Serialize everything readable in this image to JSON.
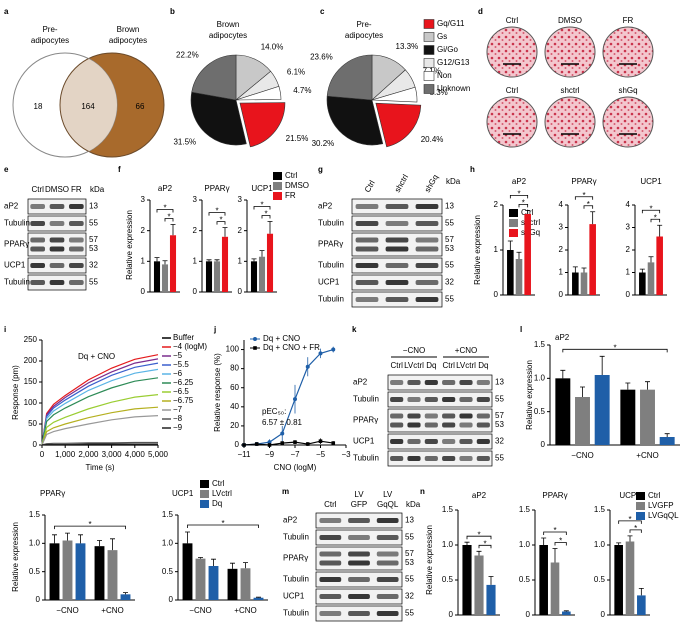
{
  "panel_labels": [
    "a",
    "b",
    "c",
    "d",
    "e",
    "f",
    "g",
    "h",
    "i",
    "j",
    "k",
    "l",
    "m",
    "n"
  ],
  "venn": {
    "sets": [
      [
        "Pre-",
        "adipocytes"
      ],
      [
        "Brown",
        "adipocytes"
      ]
    ],
    "counts": [
      18,
      164,
      66
    ],
    "colors": [
      "#ffffff",
      "#a86a2c",
      "#e3d4c5"
    ]
  },
  "pies": [
    {
      "title": [
        "Brown",
        "adipocytes"
      ],
      "values": [
        14.0,
        6.1,
        4.7,
        21.5,
        31.5,
        22.2
      ],
      "value_labels": [
        "14.0%",
        "6.1%",
        "4.7%",
        "21.5%",
        "31.5%",
        "22.2%"
      ],
      "colors": [
        "#c8c8c8",
        "#e8e8e8",
        "#ffffff",
        "#e8141c",
        "#111111",
        "#6e6e6e"
      ]
    },
    {
      "title": [
        "Pre-",
        "adipocytes"
      ],
      "values": [
        13.3,
        7.1,
        5.3,
        20.4,
        30.2,
        23.6
      ],
      "value_labels": [
        "13.3%",
        "7.1%",
        "5.3%",
        "20.4%",
        "30.2%",
        "23.6%"
      ],
      "colors": [
        "#c8c8c8",
        "#e8e8e8",
        "#ffffff",
        "#e8141c",
        "#111111",
        "#6e6e6e"
      ]
    }
  ],
  "pie_legend": {
    "names": [
      "Gq/G11",
      "Gs",
      "Gi/Go",
      "G12/G13",
      "Non",
      "Unknown"
    ],
    "colors": [
      "#e8141c",
      "#c8c8c8",
      "#111111",
      "#e8e8e8",
      "#ffffff",
      "#6e6e6e"
    ]
  },
  "staining": {
    "rows": [
      [
        "Ctrl",
        "DMSO",
        "FR"
      ],
      [
        "Ctrl",
        "shctrl",
        "shGq"
      ]
    ]
  },
  "blots": {
    "e": {
      "lanes": [
        "Ctrl",
        "DMSO",
        "FR"
      ],
      "unit": "kDa",
      "rows": [
        {
          "label": "aP2",
          "kda": [
            13
          ]
        },
        {
          "label": "Tubulin",
          "kda": [
            55
          ]
        },
        {
          "label": "PPARγ",
          "kda": [
            57,
            53
          ]
        },
        {
          "label": "UCP1",
          "kda": [
            32
          ]
        },
        {
          "label": "Tubulin",
          "kda": [
            55
          ]
        }
      ]
    },
    "g": {
      "lanes": [
        "Ctrl",
        "shctrl",
        "shGq"
      ],
      "unit": "kDa",
      "rows": [
        {
          "label": "aP2",
          "kda": [
            13
          ]
        },
        {
          "label": "Tubulin",
          "kda": [
            55
          ]
        },
        {
          "label": "PPARγ",
          "kda": [
            57,
            53
          ]
        },
        {
          "label": "Tubulin",
          "kda": [
            55
          ]
        },
        {
          "label": "UCP1",
          "kda": [
            32
          ]
        },
        {
          "label": "Tubulin",
          "kda": [
            55
          ]
        }
      ]
    },
    "k": {
      "groups": [
        "−CNO",
        "+CNO"
      ],
      "lanes": [
        "Ctrl",
        "LVctrl",
        "Dq",
        "Ctrl",
        "LVctrl",
        "Dq"
      ],
      "rows": [
        {
          "label": "aP2",
          "kda": [
            13
          ]
        },
        {
          "label": "Tubulin",
          "kda": [
            55
          ]
        },
        {
          "label": "PPARγ",
          "kda": [
            57,
            53
          ]
        },
        {
          "label": "UCP1",
          "kda": [
            32
          ]
        },
        {
          "label": "Tubulin",
          "kda": [
            55
          ]
        }
      ]
    },
    "m": {
      "lanes": [
        "Ctrl",
        [
          "LV",
          "GFP"
        ],
        [
          "LV",
          "GqQL"
        ]
      ],
      "unit": "kDa",
      "rows": [
        {
          "label": "aP2",
          "kda": [
            13
          ]
        },
        {
          "label": "Tubulin",
          "kda": [
            55
          ]
        },
        {
          "label": "PPARγ",
          "kda": [
            57,
            53
          ]
        },
        {
          "label": "Tubulin",
          "kda": [
            55
          ]
        },
        {
          "label": "UCP1",
          "kda": [
            32
          ]
        },
        {
          "label": "Tubulin",
          "kda": [
            55
          ]
        }
      ]
    }
  },
  "bars": {
    "f": {
      "legend": [
        "Ctrl",
        "DMSO",
        "FR"
      ],
      "colors": [
        "#000000",
        "#7f7f7f",
        "#e8141c"
      ],
      "ylabel": "Relative expression",
      "charts": [
        {
          "title": "aP2",
          "ylim": [
            0,
            3
          ],
          "yticks": [
            0,
            1,
            2,
            3
          ],
          "values": [
            1.0,
            0.9,
            1.85
          ],
          "errors": [
            0.12,
            0.12,
            0.35
          ],
          "significance": [
            "*",
            "*"
          ]
        },
        {
          "title": "PPARγ",
          "ylim": [
            0,
            3
          ],
          "yticks": [
            0,
            1,
            2,
            3
          ],
          "values": [
            1.0,
            1.0,
            1.8
          ],
          "errors": [
            0.05,
            0.05,
            0.3
          ],
          "significance": [
            "*",
            "*"
          ]
        },
        {
          "title": "UCP1",
          "ylim": [
            0,
            3
          ],
          "yticks": [
            0,
            1,
            2,
            3
          ],
          "values": [
            1.0,
            1.15,
            1.9
          ],
          "errors": [
            0.08,
            0.2,
            0.4
          ],
          "significance": [
            "*",
            "*"
          ]
        }
      ]
    },
    "h": {
      "legend": [
        "Ctrl",
        "shctrl",
        "shGq"
      ],
      "colors": [
        "#000000",
        "#7f7f7f",
        "#e8141c"
      ],
      "ylabel": "Relative expression",
      "charts": [
        {
          "title": "aP2",
          "ylim": [
            0,
            2
          ],
          "yticks": [
            0,
            1,
            2
          ],
          "values": [
            1.0,
            0.8,
            1.8
          ],
          "errors": [
            0.2,
            0.15,
            0.08
          ],
          "significance": [
            "*",
            "*"
          ]
        },
        {
          "title": "PPARγ",
          "ylim": [
            0,
            4
          ],
          "yticks": [
            0,
            1,
            2,
            3,
            4
          ],
          "values": [
            1.0,
            1.0,
            3.15
          ],
          "errors": [
            0.25,
            0.2,
            0.55
          ],
          "significance": [
            "*",
            "*"
          ]
        },
        {
          "title": "UCP1",
          "ylim": [
            0,
            4
          ],
          "yticks": [
            0,
            1,
            2,
            3,
            4
          ],
          "values": [
            1.0,
            1.45,
            2.6
          ],
          "errors": [
            0.15,
            0.25,
            0.5
          ],
          "significance": [
            "*",
            "*"
          ]
        }
      ]
    },
    "l": {
      "legend": [
        "Ctrl",
        "LVctrl",
        "Dq"
      ],
      "colors": [
        "#000000",
        "#7f7f7f",
        "#1f5fa8"
      ],
      "ylabel": "Relative expression",
      "groups": [
        "−CNO",
        "+CNO"
      ],
      "charts": [
        {
          "title": "aP2",
          "ylim": [
            0,
            1.5
          ],
          "yticks": [
            0,
            0.5,
            {
              "value": 1,
              "label": "1.0"
            },
            1.5
          ],
          "values": [
            1.0,
            0.72,
            1.05,
            0.83,
            0.83,
            0.12
          ],
          "errors": [
            0.12,
            0.15,
            0.28,
            0.1,
            0.12,
            0.05
          ],
          "significance": [
            "*"
          ]
        },
        {
          "title": "PPARγ",
          "ylim": [
            0,
            1.5
          ],
          "yticks": [
            0,
            0.5,
            {
              "value": 1,
              "label": "1.0"
            },
            1.5
          ],
          "values": [
            1.0,
            1.05,
            1.0,
            0.95,
            0.88,
            0.1
          ],
          "errors": [
            0.15,
            0.13,
            0.15,
            0.1,
            0.2,
            0.03
          ],
          "significance": [
            "*"
          ]
        },
        {
          "title": "UCP1",
          "ylim": [
            0,
            1.5
          ],
          "yticks": [
            0,
            0.5,
            {
              "value": 1,
              "label": "1.0"
            },
            1.5
          ],
          "values": [
            1.0,
            0.73,
            0.6,
            0.55,
            0.56,
            0.04
          ],
          "errors": [
            0.2,
            0.02,
            0.12,
            0.1,
            0.1,
            0.01
          ],
          "significance": [
            "*"
          ]
        }
      ]
    },
    "n": {
      "legend": [
        "Ctrl",
        "LVGFP",
        "LVGqQL"
      ],
      "colors": [
        "#000000",
        "#7f7f7f",
        "#1f5fa8"
      ],
      "ylabel": "Relative expression",
      "charts": [
        {
          "title": "aP2",
          "ylim": [
            0,
            1.5
          ],
          "yticks": [
            0,
            0.5,
            {
              "value": 1,
              "label": "1.0"
            },
            1.5
          ],
          "values": [
            1.0,
            0.85,
            0.43
          ],
          "errors": [
            0.04,
            0.06,
            0.12
          ],
          "significance": [
            "*",
            "*"
          ]
        },
        {
          "title": "PPARγ",
          "ylim": [
            0,
            1.5
          ],
          "yticks": [
            0,
            0.5,
            {
              "value": 1,
              "label": "1.0"
            },
            1.5
          ],
          "values": [
            1.0,
            0.75,
            0.05
          ],
          "errors": [
            0.1,
            0.2,
            0.01
          ],
          "significance": [
            "*",
            "*"
          ]
        },
        {
          "title": "UCP1",
          "ylim": [
            0,
            1.5
          ],
          "yticks": [
            0,
            0.5,
            {
              "value": 1,
              "label": "1.0"
            },
            1.5
          ],
          "values": [
            1.0,
            1.05,
            0.28
          ],
          "errors": [
            0.03,
            0.08,
            0.1
          ],
          "significance": [
            "*",
            "*"
          ]
        }
      ]
    }
  },
  "response": {
    "type": "line",
    "annotation": "Dq + CNO",
    "xlabel": "Time (s)",
    "ylabel": "Response (pm)",
    "xlim": [
      0,
      5000
    ],
    "xticks": [
      0,
      {
        "value": 1000,
        "label": "1,000"
      },
      {
        "value": 2000,
        "label": "2,000"
      },
      {
        "value": 3000,
        "label": "3,000"
      },
      {
        "value": 4000,
        "label": "4,000"
      },
      {
        "value": 5000,
        "label": "5,000"
      }
    ],
    "ylim": [
      0,
      250
    ],
    "yticks": [
      0,
      50,
      100,
      150,
      200,
      250
    ],
    "x": [
      0,
      200,
      500,
      1000,
      2000,
      3000,
      4000,
      5000
    ],
    "series": [
      {
        "name": "Buffer",
        "color": "#000000",
        "values": [
          0,
          0,
          0,
          0,
          0,
          0,
          0,
          0
        ]
      },
      {
        "name": "−4 (logM)",
        "color": "#e41a1c",
        "values": [
          0,
          75,
          97,
          118,
          155,
          183,
          204,
          215
        ]
      },
      {
        "name": "−5",
        "color": "#7b2d8e",
        "values": [
          0,
          72,
          92,
          113,
          148,
          174,
          195,
          205
        ]
      },
      {
        "name": "−5.5",
        "color": "#3a5fcd",
        "values": [
          0,
          68,
          88,
          107,
          140,
          166,
          185,
          195
        ]
      },
      {
        "name": "−6",
        "color": "#5ab4e5",
        "values": [
          0,
          63,
          81,
          99,
          130,
          153,
          171,
          180
        ]
      },
      {
        "name": "−6.25",
        "color": "#2e8b57",
        "values": [
          0,
          56,
          72,
          88,
          115,
          136,
          152,
          160
        ]
      },
      {
        "name": "−6.5",
        "color": "#9acd32",
        "values": [
          0,
          42,
          54,
          66,
          86,
          102,
          114,
          120
        ]
      },
      {
        "name": "−6.75",
        "color": "#b5b020",
        "values": [
          0,
          32,
          41,
          50,
          65,
          77,
          86,
          90
        ]
      },
      {
        "name": "−7",
        "color": "#999999",
        "values": [
          0,
          25,
          32,
          39,
          50,
          60,
          67,
          70
        ]
      },
      {
        "name": "−8",
        "color": "#555555",
        "values": [
          0,
          3,
          4,
          4,
          5,
          5,
          6,
          6
        ]
      },
      {
        "name": "−9",
        "color": "#222222",
        "values": [
          0,
          1,
          1,
          1,
          2,
          2,
          2,
          2
        ]
      }
    ]
  },
  "dose": {
    "type": "line",
    "xlabel": "CNO (logM)",
    "ylabel": "Relative response (%)",
    "xlim": [
      -11,
      -3
    ],
    "xticks": [
      {
        "value": -11,
        "label": "−11"
      },
      {
        "value": -9,
        "label": "−9"
      },
      {
        "value": -7,
        "label": "−7"
      },
      {
        "value": -5,
        "label": "−5"
      },
      {
        "value": -3,
        "label": "−3"
      }
    ],
    "ylim": [
      0,
      110
    ],
    "yticks": [
      0,
      20,
      40,
      60,
      80,
      100
    ],
    "x": [
      -11,
      -10,
      -9,
      -8,
      -7,
      -6,
      -5,
      -4
    ],
    "series": [
      {
        "name": "Dq + CNO",
        "color": "#1f5fa8",
        "values": [
          0,
          1,
          3,
          12,
          48,
          82,
          96,
          100
        ],
        "errors": [
          2,
          2,
          3,
          8,
          15,
          10,
          5,
          3
        ]
      },
      {
        "name": "Dq + CNO + FR",
        "color": "#000000",
        "values": [
          0,
          1,
          0,
          2,
          3,
          1,
          4,
          2
        ],
        "errors": [
          1,
          1,
          1,
          2,
          2,
          2,
          3,
          2
        ]
      }
    ],
    "annotation": [
      "pEC₅₀:",
      "6.57 ± 0.81"
    ]
  }
}
